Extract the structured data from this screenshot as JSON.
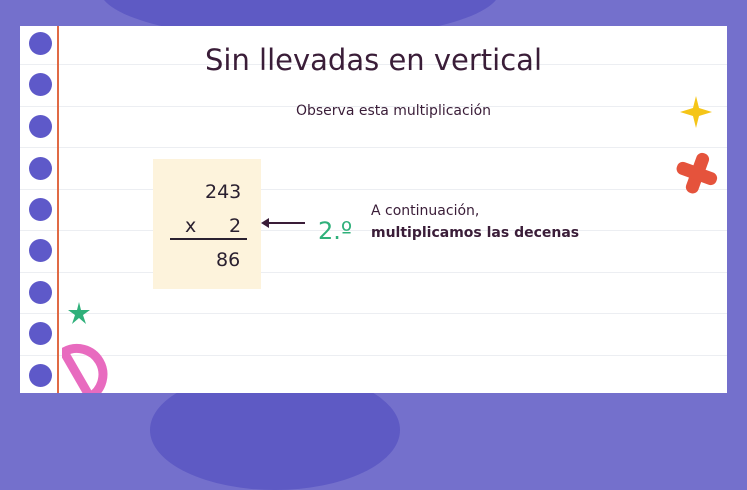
{
  "slide": {
    "title": "Sin llevadas en vertical",
    "subtitle": "Observa esta multiplicación",
    "operation": {
      "multiplicand": "243",
      "operator": "x",
      "multiplier": "2",
      "result": "86"
    },
    "step": "2.º",
    "explanation_line1": "A continuación,",
    "explanation_line2": "multiplicamos las decenas"
  },
  "colors": {
    "background": "#7470cc",
    "accent_green": "#2fb07a",
    "text": "#3a1d38",
    "margin_line": "#e06a45",
    "box": "#fdf3dc"
  }
}
